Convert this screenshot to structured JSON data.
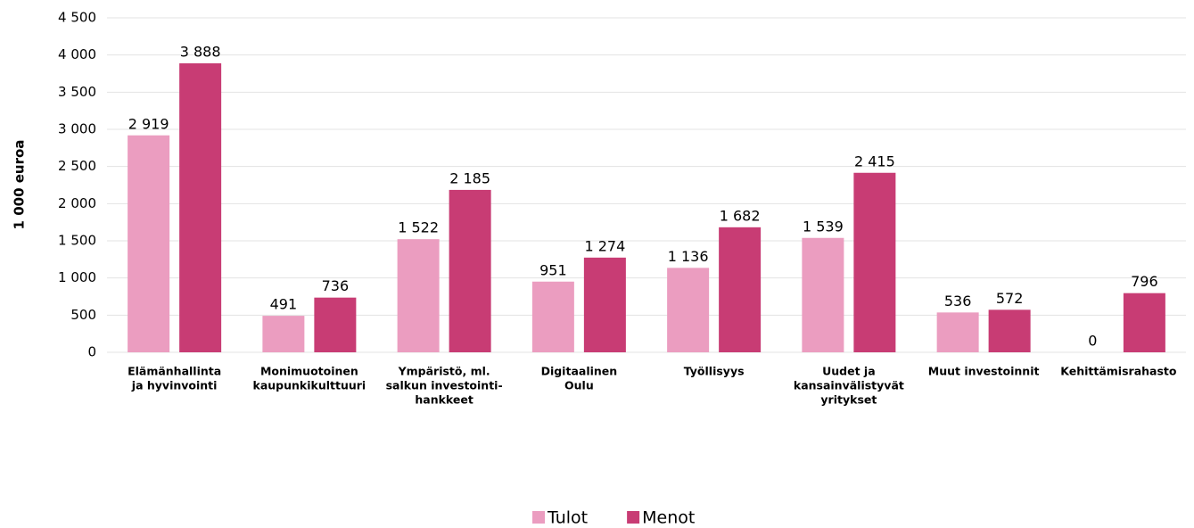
{
  "chart_data": {
    "type": "bar",
    "y_label": "1 000 euroa",
    "categories": [
      [
        "Elämänhallinta",
        "ja hyvinvointi"
      ],
      [
        "Monimuotoinen",
        "kaupunkikulttuuri"
      ],
      [
        "Ympäristö, ml.",
        "salkun investointi-",
        "hankkeet"
      ],
      [
        "Digitaalinen",
        "Oulu"
      ],
      [
        "Työllisyys"
      ],
      [
        "Uudet ja",
        "kansainvälistyvät",
        "yritykset"
      ],
      [
        "Muut investoinnit"
      ],
      [
        "Kehittämisrahasto"
      ]
    ],
    "series": [
      {
        "name": "Tulot",
        "color": "#eb9dc0",
        "values": [
          2919,
          491,
          1522,
          951,
          1136,
          1539,
          536,
          0
        ],
        "value_labels": [
          "2 919",
          "491",
          "1 522",
          "951",
          "1 136",
          "1 539",
          "536",
          "0"
        ]
      },
      {
        "name": "Menot",
        "color": "#c83c74",
        "values": [
          3888,
          736,
          2185,
          1274,
          1682,
          2415,
          572,
          796
        ],
        "value_labels": [
          "3 888",
          "736",
          "2 185",
          "1 274",
          "1 682",
          "2 415",
          "572",
          "796"
        ]
      }
    ],
    "ylim": [
      0,
      4500
    ],
    "yticks": [
      0,
      500,
      {
        "value": 1000,
        "label": "1 000"
      },
      {
        "value": 1500,
        "label": "1 500"
      },
      {
        "value": 2000,
        "label": "2 000"
      },
      {
        "value": 2500,
        "label": "2 500"
      },
      {
        "value": 3000,
        "label": "3 000"
      },
      {
        "value": 3500,
        "label": "3 500"
      },
      {
        "value": 4000,
        "label": "4 000"
      },
      {
        "value": 4500,
        "label": "4 500"
      }
    ],
    "grid": true,
    "legend": "bottom"
  }
}
